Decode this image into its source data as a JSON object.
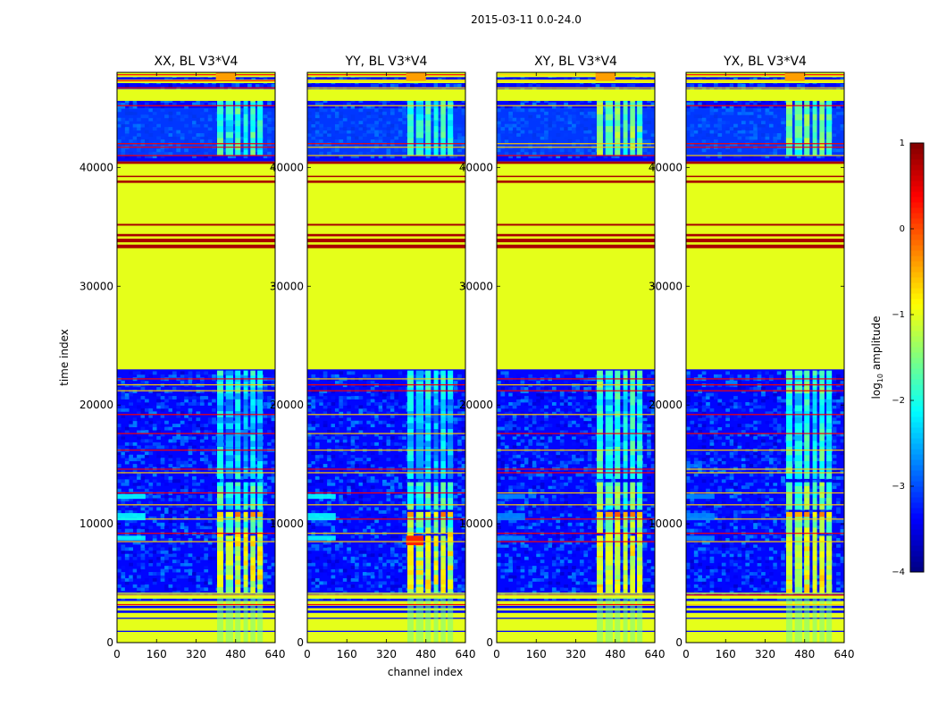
{
  "chart_data": {
    "type": "heatmap",
    "suptitle": "2015-03-11 0.0-24.0",
    "xlabel": "channel index",
    "ylabel": "time index",
    "xlim": [
      0,
      640
    ],
    "ylim": [
      0,
      48000
    ],
    "x_ticks": [
      0,
      160,
      320,
      480,
      640
    ],
    "y_ticks": [
      0,
      10000,
      20000,
      30000,
      40000
    ],
    "panels": [
      {
        "title": "XX, BL V3*V4",
        "pol": "XX",
        "cross": false
      },
      {
        "title": "YY, BL V3*V4",
        "pol": "YY",
        "cross": false
      },
      {
        "title": "XY, BL V3*V4",
        "pol": "XY",
        "cross": true
      },
      {
        "title": "YX, BL V3*V4",
        "pol": "YX",
        "cross": true
      }
    ],
    "flagged_block": {
      "from": 23000,
      "to": 40500,
      "log10_value": -1
    },
    "rfi_channel_range": [
      400,
      600
    ],
    "colorbar": {
      "label": "log10 amplitude",
      "label_main": "log",
      "label_sub": "10",
      "label_rest": " amplitude",
      "range": [
        -4,
        1
      ],
      "ticks": [
        -4,
        -3,
        -2,
        -1,
        0,
        1
      ],
      "tick_labels": [
        "−4",
        "−3",
        "−2",
        "−1",
        "0",
        "1"
      ],
      "colormap": "jet"
    }
  }
}
